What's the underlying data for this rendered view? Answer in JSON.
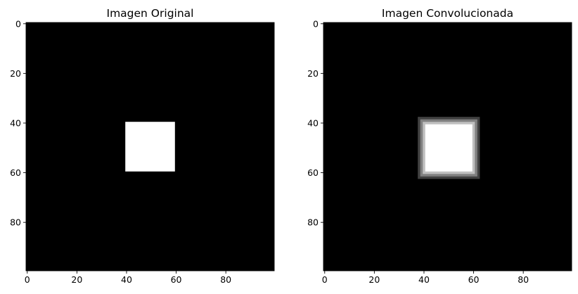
{
  "chart_data": [
    {
      "type": "heatmap",
      "title": "Imagen Original",
      "colormap": "gray",
      "image_size": [
        100,
        100
      ],
      "xlim": [
        -0.5,
        99.5
      ],
      "ylim": [
        99.5,
        -0.5
      ],
      "xticks": [
        0,
        20,
        40,
        60,
        80
      ],
      "yticks": [
        0,
        20,
        40,
        60,
        80
      ],
      "background_value": 0,
      "square": {
        "x0": 40,
        "x1": 60,
        "y0": 40,
        "y1": 60,
        "value": 1
      }
    },
    {
      "type": "heatmap",
      "title": "Imagen Convolucionada",
      "colormap": "gray",
      "image_size": [
        100,
        100
      ],
      "xlim": [
        -0.5,
        99.5
      ],
      "ylim": [
        99.5,
        -0.5
      ],
      "xticks": [
        0,
        20,
        40,
        60,
        80
      ],
      "yticks": [
        0,
        20,
        40,
        60,
        80
      ],
      "background_value": 0,
      "square": {
        "x0": 40,
        "x1": 60,
        "y0": 40,
        "y1": 60,
        "value": 1
      },
      "blur_edge_levels": [
        0.25,
        0.5,
        0.75
      ]
    }
  ]
}
